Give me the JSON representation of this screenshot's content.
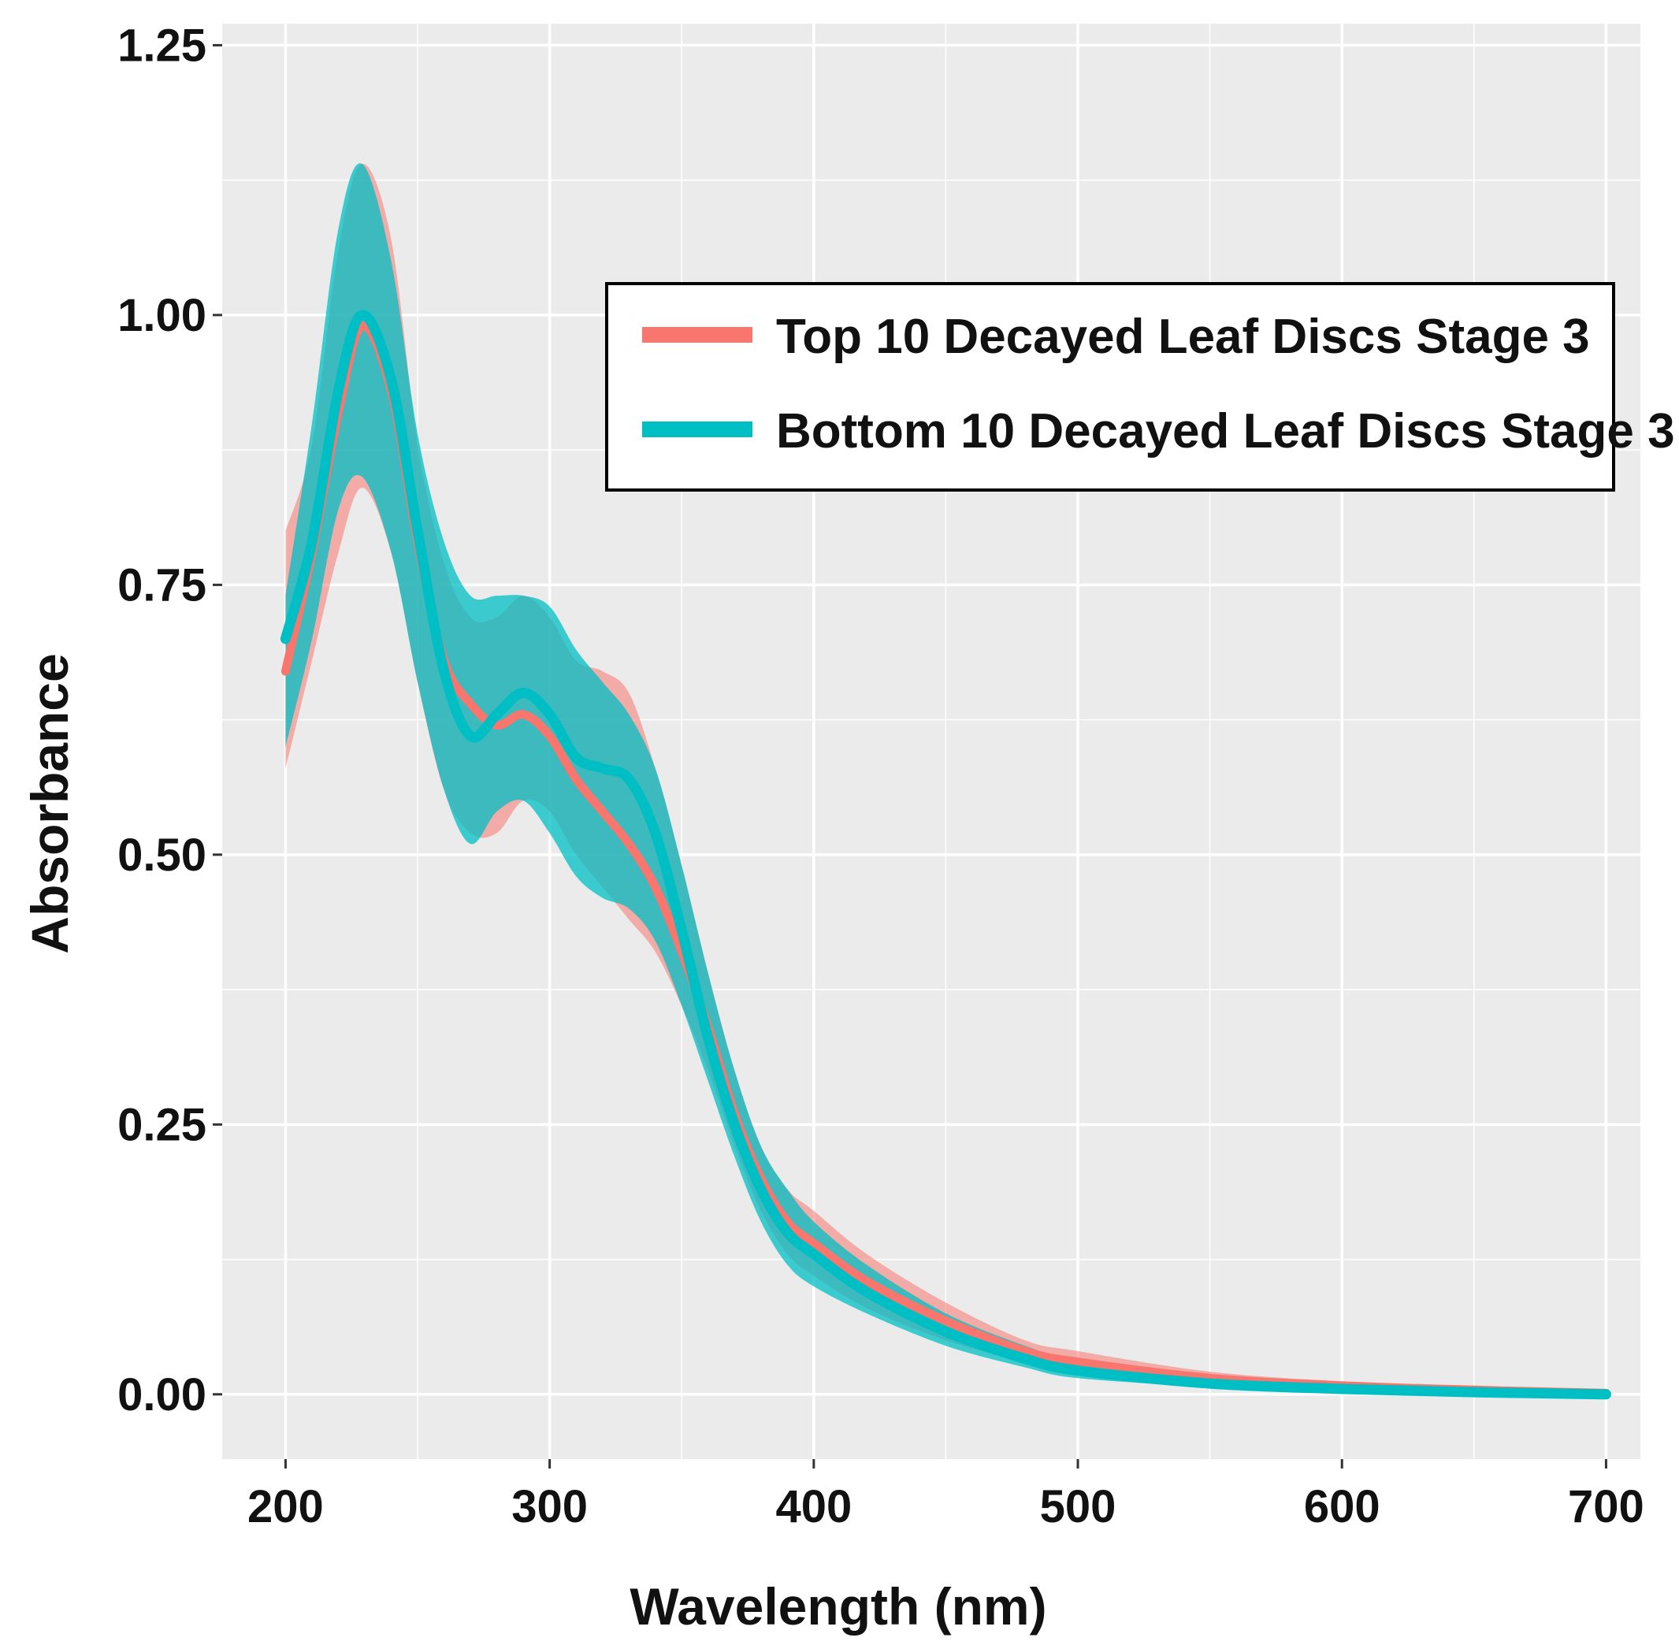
{
  "chart_data": {
    "type": "line",
    "title": "",
    "xlabel": "Wavelength (nm)",
    "ylabel": "Absorbance",
    "xlim": [
      176,
      713
    ],
    "ylim": [
      -0.06,
      1.27
    ],
    "x_ticks": [
      200,
      300,
      400,
      500,
      600,
      700
    ],
    "x_tick_labels": [
      "200",
      "300",
      "400",
      "500",
      "600",
      "700"
    ],
    "y_ticks": [
      0,
      0.25,
      0.5,
      0.75,
      1.0,
      1.25
    ],
    "y_tick_labels": [
      "0.00",
      "0.25",
      "0.50",
      "0.75",
      "1.00",
      "1.25"
    ],
    "grid": true,
    "legend_position": "top-right",
    "series": [
      {
        "name": "Top 10 Decayed Leaf Discs Stage 3",
        "color": "#F8766D",
        "x": [
          200,
          210,
          220,
          229,
          240,
          250,
          260,
          270,
          280,
          290,
          300,
          310,
          320,
          330,
          340,
          350,
          360,
          370,
          380,
          390,
          400,
          420,
          450,
          480,
          500,
          550,
          600,
          650,
          700
        ],
        "y": [
          0.67,
          0.78,
          0.91,
          0.99,
          0.93,
          0.79,
          0.68,
          0.64,
          0.62,
          0.63,
          0.61,
          0.57,
          0.54,
          0.51,
          0.47,
          0.41,
          0.34,
          0.26,
          0.2,
          0.16,
          0.14,
          0.105,
          0.068,
          0.04,
          0.03,
          0.015,
          0.008,
          0.004,
          0.001
        ],
        "lower": [
          0.58,
          0.68,
          0.78,
          0.84,
          0.78,
          0.66,
          0.56,
          0.52,
          0.52,
          0.55,
          0.54,
          0.5,
          0.47,
          0.44,
          0.41,
          0.36,
          0.3,
          0.23,
          0.17,
          0.13,
          0.11,
          0.08,
          0.05,
          0.03,
          0.02,
          0.009,
          0.004,
          0.001,
          -0.002
        ],
        "upper": [
          0.8,
          0.88,
          1.06,
          1.14,
          1.07,
          0.88,
          0.77,
          0.72,
          0.72,
          0.74,
          0.72,
          0.68,
          0.67,
          0.65,
          0.58,
          0.49,
          0.39,
          0.3,
          0.23,
          0.19,
          0.17,
          0.13,
          0.085,
          0.05,
          0.04,
          0.021,
          0.012,
          0.007,
          0.004
        ]
      },
      {
        "name": "Bottom 10 Decayed Leaf Discs Stage 3",
        "color": "#00BFC4",
        "x": [
          200,
          210,
          220,
          229,
          240,
          250,
          260,
          270,
          280,
          290,
          300,
          310,
          320,
          330,
          340,
          350,
          360,
          370,
          380,
          390,
          400,
          420,
          450,
          480,
          500,
          550,
          600,
          650,
          700
        ],
        "y": [
          0.7,
          0.79,
          0.93,
          1.0,
          0.94,
          0.8,
          0.67,
          0.61,
          0.63,
          0.65,
          0.63,
          0.59,
          0.58,
          0.57,
          0.52,
          0.43,
          0.33,
          0.25,
          0.19,
          0.15,
          0.13,
          0.095,
          0.058,
          0.033,
          0.022,
          0.01,
          0.005,
          0.002,
          0.0
        ],
        "lower": [
          0.6,
          0.7,
          0.82,
          0.85,
          0.78,
          0.66,
          0.56,
          0.51,
          0.54,
          0.55,
          0.52,
          0.48,
          0.46,
          0.45,
          0.42,
          0.36,
          0.29,
          0.22,
          0.16,
          0.12,
          0.1,
          0.075,
          0.045,
          0.025,
          0.015,
          0.007,
          0.003,
          0.0,
          -0.003
        ],
        "upper": [
          0.74,
          0.9,
          1.08,
          1.14,
          1.05,
          0.89,
          0.79,
          0.74,
          0.74,
          0.74,
          0.73,
          0.69,
          0.66,
          0.63,
          0.58,
          0.49,
          0.39,
          0.3,
          0.23,
          0.19,
          0.16,
          0.12,
          0.075,
          0.045,
          0.032,
          0.016,
          0.009,
          0.005,
          0.003
        ]
      }
    ]
  }
}
